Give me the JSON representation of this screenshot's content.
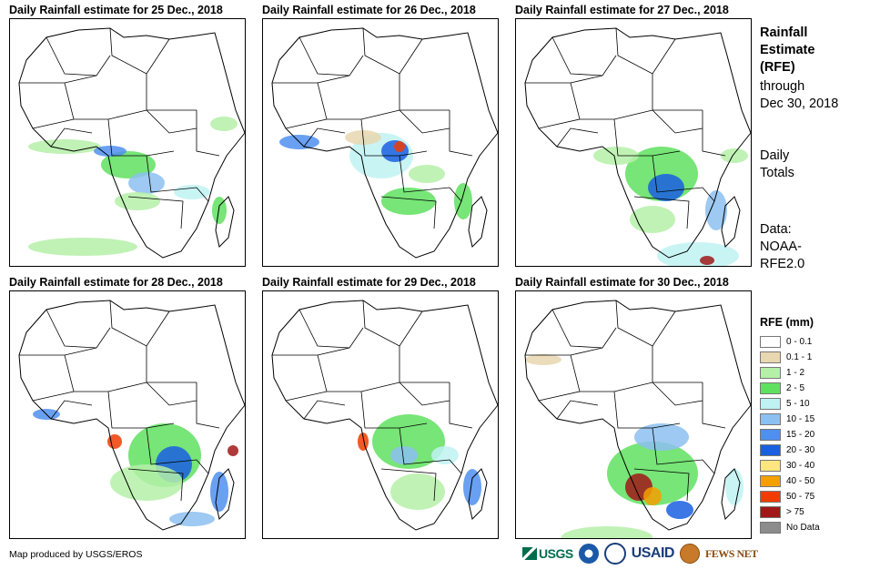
{
  "panels": [
    {
      "title": "Daily Rainfall estimate for 25 Dec., 2018"
    },
    {
      "title": "Daily Rainfall estimate for 26 Dec., 2018"
    },
    {
      "title": "Daily Rainfall estimate for 27 Dec., 2018"
    },
    {
      "title": "Daily Rainfall estimate for 28 Dec., 2018"
    },
    {
      "title": "Daily Rainfall estimate for 29 Dec., 2018"
    },
    {
      "title": "Daily Rainfall estimate for 30 Dec., 2018"
    }
  ],
  "side": {
    "title_lines": [
      "Rainfall",
      "Estimate",
      "(RFE)"
    ],
    "through": "through",
    "date": "Dec 30, 2018",
    "daily": "Daily",
    "totals": "Totals",
    "data_label": "Data:",
    "source_1": "NOAA-",
    "source_2": "RFE2.0"
  },
  "legend": {
    "title": "RFE (mm)",
    "items": [
      {
        "label": "0 - 0.1",
        "color": "#ffffff"
      },
      {
        "label": "0.1 - 1",
        "color": "#e8d7b0"
      },
      {
        "label": "1 - 2",
        "color": "#b5f0a8"
      },
      {
        "label": "2 - 5",
        "color": "#5fe05f"
      },
      {
        "label": "5 - 10",
        "color": "#bff2f2"
      },
      {
        "label": "10 - 15",
        "color": "#8cc0f0"
      },
      {
        "label": "15 - 20",
        "color": "#4f8ff0"
      },
      {
        "label": "20 - 30",
        "color": "#1a5fe0"
      },
      {
        "label": "30 - 40",
        "color": "#ffe680"
      },
      {
        "label": "40 - 50",
        "color": "#f5a000"
      },
      {
        "label": "50 - 75",
        "color": "#f03c00"
      },
      {
        "label": "> 75",
        "color": "#a01818"
      },
      {
        "label": "No Data",
        "color": "#8c8c8c"
      }
    ]
  },
  "credit": "Map produced by USGS/EROS",
  "logos": {
    "usgs": "USGS",
    "usaid": "USAID",
    "fewsnet": "FEWS NET"
  }
}
